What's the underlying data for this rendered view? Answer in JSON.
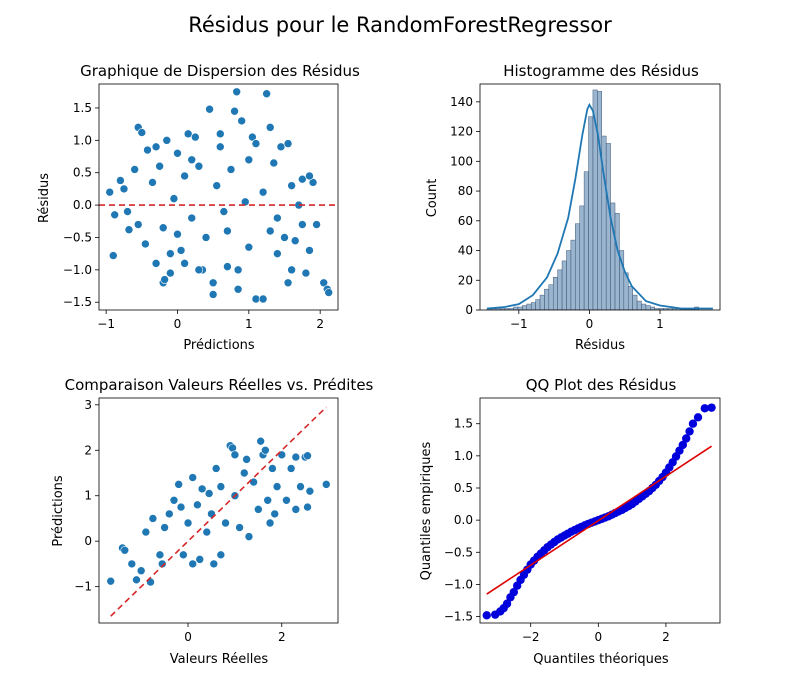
{
  "suptitle": "Résidus pour le RandomForestRegressor",
  "colors": {
    "scatter": "#1f77b4",
    "ref_line": "#d62728",
    "qq_points": "#0000dd",
    "qq_line": "#dd0000",
    "hist_bar": "#7a9cbf"
  },
  "chart_data": [
    {
      "id": "scatter-residuals",
      "type": "scatter",
      "title": "Graphique de Dispersion des Résidus",
      "xlabel": "Prédictions",
      "ylabel": "Résidus",
      "xlim": [
        -1.1,
        2.25
      ],
      "ylim": [
        -1.62,
        1.87
      ],
      "xticks": [
        -1,
        0,
        1,
        2
      ],
      "yticks": [
        -1.5,
        -1.0,
        -0.5,
        0.0,
        0.5,
        1.0,
        1.5
      ],
      "ytick_labels": [
        "−1.5",
        "−1.0",
        "−0.5",
        "0.0",
        "0.5",
        "1.0",
        "1.5"
      ],
      "xtick_labels": [
        "−1",
        "0",
        "1",
        "2"
      ],
      "ref_line": {
        "type": "hline",
        "y": 0,
        "style": "dashed"
      },
      "points": [
        [
          -0.95,
          0.2
        ],
        [
          -0.88,
          -0.15
        ],
        [
          -0.9,
          -0.78
        ],
        [
          -0.8,
          0.38
        ],
        [
          -0.75,
          0.25
        ],
        [
          -0.7,
          -0.1
        ],
        [
          -0.68,
          -0.38
        ],
        [
          -0.6,
          0.55
        ],
        [
          -0.55,
          1.2
        ],
        [
          -0.5,
          1.12
        ],
        [
          -0.55,
          -0.3
        ],
        [
          -0.45,
          -0.6
        ],
        [
          -0.42,
          0.85
        ],
        [
          -0.35,
          0.35
        ],
        [
          -0.3,
          -0.9
        ],
        [
          -0.25,
          0.6
        ],
        [
          -0.2,
          -0.35
        ],
        [
          -0.15,
          1.0
        ],
        [
          -0.1,
          -1.05
        ],
        [
          -0.05,
          0.1
        ],
        [
          0.0,
          0.8
        ],
        [
          0.05,
          -0.7
        ],
        [
          -0.2,
          -1.2
        ],
        [
          -0.18,
          -1.15
        ],
        [
          0.1,
          0.45
        ],
        [
          0.15,
          1.1
        ],
        [
          0.2,
          -0.2
        ],
        [
          0.25,
          1.05
        ],
        [
          0.3,
          0.6
        ],
        [
          0.35,
          -1.0
        ],
        [
          0.4,
          -0.5
        ],
        [
          0.45,
          1.48
        ],
        [
          0.5,
          -1.38
        ],
        [
          0.55,
          0.3
        ],
        [
          0.6,
          1.1
        ],
        [
          0.65,
          -0.1
        ],
        [
          0.7,
          -0.95
        ],
        [
          0.75,
          0.55
        ],
        [
          0.8,
          1.45
        ],
        [
          0.85,
          -1.0
        ],
        [
          0.9,
          1.3
        ],
        [
          0.95,
          0.05
        ],
        [
          0.83,
          1.75
        ],
        [
          0.85,
          -1.3
        ],
        [
          1.0,
          -0.65
        ],
        [
          1.05,
          1.05
        ],
        [
          1.1,
          -1.45
        ],
        [
          1.2,
          -1.45
        ],
        [
          1.25,
          1.72
        ],
        [
          1.2,
          0.2
        ],
        [
          1.3,
          -0.4
        ],
        [
          1.35,
          0.65
        ],
        [
          1.4,
          -0.2
        ],
        [
          1.45,
          0.9
        ],
        [
          1.5,
          -0.5
        ],
        [
          1.55,
          -1.2
        ],
        [
          1.6,
          0.3
        ],
        [
          1.65,
          -0.55
        ],
        [
          1.7,
          0.0
        ],
        [
          1.75,
          -0.3
        ],
        [
          1.75,
          0.4
        ],
        [
          1.8,
          -1.05
        ],
        [
          1.85,
          -0.7
        ],
        [
          1.9,
          0.35
        ],
        [
          1.95,
          -0.3
        ],
        [
          2.05,
          -1.2
        ],
        [
          2.1,
          -1.3
        ],
        [
          2.12,
          -1.35
        ],
        [
          1.85,
          0.45
        ],
        [
          1.55,
          0.95
        ],
        [
          1.3,
          1.2
        ],
        [
          1.1,
          0.95
        ],
        [
          0.5,
          -1.2
        ],
        [
          0.3,
          -1.0
        ],
        [
          0.1,
          -0.9
        ],
        [
          -0.1,
          -0.75
        ],
        [
          -0.3,
          0.9
        ],
        [
          0.6,
          0.9
        ],
        [
          1.4,
          -0.75
        ],
        [
          1.6,
          -1.0
        ],
        [
          0.2,
          0.7
        ],
        [
          0.0,
          -0.45
        ],
        [
          1.0,
          0.7
        ],
        [
          0.7,
          -0.4
        ]
      ]
    },
    {
      "id": "hist-residuals",
      "type": "bar",
      "title": "Histogramme des Résidus",
      "xlabel": "Résidus",
      "ylabel": "Count",
      "xlim": [
        -1.55,
        1.85
      ],
      "ylim": [
        0,
        152
      ],
      "xticks": [
        -1,
        0,
        1
      ],
      "xtick_labels": [
        "−1",
        "0",
        "1"
      ],
      "yticks": [
        0,
        20,
        40,
        60,
        80,
        100,
        120,
        140
      ],
      "bin_start": -1.45,
      "bin_width": 0.0625,
      "counts": [
        1,
        1,
        1,
        1,
        1,
        1,
        2,
        2,
        3,
        4,
        5,
        7,
        10,
        14,
        17,
        22,
        27,
        33,
        40,
        47,
        58,
        70,
        93,
        130,
        148,
        147,
        117,
        112,
        72,
        65,
        40,
        25,
        16,
        10,
        6,
        4,
        3,
        2,
        1,
        1,
        1,
        1,
        1,
        1,
        1,
        1,
        1,
        2
      ],
      "kde": [
        [
          -1.45,
          1
        ],
        [
          -1.2,
          2
        ],
        [
          -1.0,
          4
        ],
        [
          -0.8,
          10
        ],
        [
          -0.6,
          22
        ],
        [
          -0.45,
          38
        ],
        [
          -0.3,
          62
        ],
        [
          -0.2,
          88
        ],
        [
          -0.1,
          118
        ],
        [
          -0.03,
          135
        ],
        [
          0.0,
          138
        ],
        [
          0.05,
          134
        ],
        [
          0.12,
          118
        ],
        [
          0.2,
          92
        ],
        [
          0.3,
          62
        ],
        [
          0.4,
          40
        ],
        [
          0.5,
          26
        ],
        [
          0.6,
          16
        ],
        [
          0.8,
          6
        ],
        [
          1.0,
          3
        ],
        [
          1.3,
          1
        ],
        [
          1.6,
          1
        ],
        [
          1.75,
          1
        ]
      ]
    },
    {
      "id": "actual-vs-predicted",
      "type": "scatter",
      "title": "Comparaison Valeurs Réelles vs. Prédites",
      "xlabel": "Valeurs Réelles",
      "ylabel": "Prédictions",
      "xlim": [
        -1.9,
        3.2
      ],
      "ylim": [
        -1.8,
        3.15
      ],
      "xticks": [
        0,
        2
      ],
      "xtick_labels": [
        "0",
        "2"
      ],
      "yticks": [
        -1,
        0,
        1,
        2,
        3
      ],
      "ytick_labels": [
        "−1",
        "0",
        "1",
        "2",
        "3"
      ],
      "ref_line": {
        "type": "diagonal",
        "from": [
          -1.65,
          -1.65
        ],
        "to": [
          2.95,
          2.95
        ],
        "style": "dashed"
      },
      "points": [
        [
          -1.65,
          -0.88
        ],
        [
          -1.4,
          -0.15
        ],
        [
          -1.35,
          -0.2
        ],
        [
          -1.2,
          -0.5
        ],
        [
          -1.1,
          -0.85
        ],
        [
          -1.0,
          -0.65
        ],
        [
          -0.9,
          0.2
        ],
        [
          -0.8,
          -0.9
        ],
        [
          -0.75,
          0.5
        ],
        [
          -0.6,
          -0.3
        ],
        [
          -0.5,
          0.3
        ],
        [
          -0.4,
          0.6
        ],
        [
          -0.3,
          0.9
        ],
        [
          -0.2,
          1.25
        ],
        [
          -0.1,
          -0.3
        ],
        [
          0.0,
          0.4
        ],
        [
          0.1,
          -0.5
        ],
        [
          0.2,
          0.8
        ],
        [
          0.3,
          1.15
        ],
        [
          0.4,
          0.2
        ],
        [
          0.5,
          0.6
        ],
        [
          0.55,
          -0.5
        ],
        [
          0.6,
          1.6
        ],
        [
          0.7,
          1.2
        ],
        [
          0.8,
          0.4
        ],
        [
          0.9,
          2.1
        ],
        [
          0.95,
          2.05
        ],
        [
          1.0,
          1.0
        ],
        [
          1.1,
          0.3
        ],
        [
          1.2,
          1.5
        ],
        [
          1.25,
          1.8
        ],
        [
          1.3,
          0.1
        ],
        [
          1.4,
          1.3
        ],
        [
          1.5,
          0.7
        ],
        [
          1.6,
          1.9
        ],
        [
          1.65,
          2.0
        ],
        [
          1.7,
          0.9
        ],
        [
          1.75,
          0.4
        ],
        [
          1.8,
          1.6
        ],
        [
          1.9,
          1.2
        ],
        [
          2.0,
          1.9
        ],
        [
          2.1,
          0.9
        ],
        [
          2.2,
          1.6
        ],
        [
          2.3,
          1.85
        ],
        [
          2.4,
          1.2
        ],
        [
          2.5,
          1.85
        ],
        [
          2.3,
          0.7
        ],
        [
          2.55,
          0.75
        ],
        [
          2.6,
          1.1
        ],
        [
          2.55,
          1.88
        ],
        [
          2.95,
          1.25
        ],
        [
          1.55,
          2.2
        ],
        [
          0.45,
          1.05
        ],
        [
          -0.15,
          0.75
        ],
        [
          0.25,
          -0.4
        ],
        [
          0.7,
          -0.3
        ],
        [
          1.85,
          0.6
        ],
        [
          0.1,
          1.4
        ],
        [
          -0.55,
          -0.5
        ],
        [
          1.0,
          1.9
        ]
      ]
    },
    {
      "id": "qq-plot",
      "type": "scatter",
      "title": "QQ Plot des Résidus",
      "xlabel": "Quantiles théoriques",
      "ylabel": "Quantiles empiriques",
      "xlim": [
        -3.5,
        3.6
      ],
      "ylim": [
        -1.6,
        1.9
      ],
      "xticks": [
        -2,
        0,
        2
      ],
      "xtick_labels": [
        "−2",
        "0",
        "2"
      ],
      "yticks": [
        -1.5,
        -1.0,
        -0.5,
        0.0,
        0.5,
        1.0,
        1.5
      ],
      "ytick_labels": [
        "−1.5",
        "−1.0",
        "−0.5",
        "0.0",
        "0.5",
        "1.0",
        "1.5"
      ],
      "fit_line": {
        "from": [
          -3.3,
          -1.15
        ],
        "to": [
          3.35,
          1.15
        ]
      },
      "points": [
        [
          -3.3,
          -1.48
        ],
        [
          -3.05,
          -1.47
        ],
        [
          -2.9,
          -1.42
        ],
        [
          -2.8,
          -1.37
        ],
        [
          -2.7,
          -1.3
        ],
        [
          -2.6,
          -1.2
        ],
        [
          -2.5,
          -1.12
        ],
        [
          -2.4,
          -1.02
        ],
        [
          -2.3,
          -0.93
        ],
        [
          -2.2,
          -0.85
        ],
        [
          -2.1,
          -0.77
        ],
        [
          -2.0,
          -0.69
        ],
        [
          -1.9,
          -0.63
        ],
        [
          -1.8,
          -0.57
        ],
        [
          -1.7,
          -0.52
        ],
        [
          -1.6,
          -0.47
        ],
        [
          -1.5,
          -0.42
        ],
        [
          -1.4,
          -0.38
        ],
        [
          -1.3,
          -0.34
        ],
        [
          -1.2,
          -0.3
        ],
        [
          -1.1,
          -0.27
        ],
        [
          -1.0,
          -0.24
        ],
        [
          -0.9,
          -0.21
        ],
        [
          -0.8,
          -0.18
        ],
        [
          -0.7,
          -0.155
        ],
        [
          -0.6,
          -0.13
        ],
        [
          -0.5,
          -0.105
        ],
        [
          -0.4,
          -0.08
        ],
        [
          -0.3,
          -0.06
        ],
        [
          -0.2,
          -0.04
        ],
        [
          -0.1,
          -0.02
        ],
        [
          0.0,
          0.0
        ],
        [
          0.1,
          0.02
        ],
        [
          0.2,
          0.04
        ],
        [
          0.3,
          0.06
        ],
        [
          0.4,
          0.085
        ],
        [
          0.5,
          0.11
        ],
        [
          0.6,
          0.135
        ],
        [
          0.7,
          0.16
        ],
        [
          0.8,
          0.19
        ],
        [
          0.9,
          0.22
        ],
        [
          1.0,
          0.25
        ],
        [
          1.1,
          0.29
        ],
        [
          1.2,
          0.33
        ],
        [
          1.3,
          0.37
        ],
        [
          1.4,
          0.41
        ],
        [
          1.5,
          0.45
        ],
        [
          1.6,
          0.5
        ],
        [
          1.7,
          0.55
        ],
        [
          1.8,
          0.61
        ],
        [
          1.9,
          0.67
        ],
        [
          2.0,
          0.74
        ],
        [
          2.1,
          0.82
        ],
        [
          2.2,
          0.9
        ],
        [
          2.3,
          0.99
        ],
        [
          2.4,
          1.08
        ],
        [
          2.5,
          1.17
        ],
        [
          2.6,
          1.27
        ],
        [
          2.7,
          1.38
        ],
        [
          2.8,
          1.5
        ],
        [
          2.95,
          1.6
        ],
        [
          3.15,
          1.74
        ],
        [
          3.35,
          1.75
        ]
      ]
    }
  ]
}
